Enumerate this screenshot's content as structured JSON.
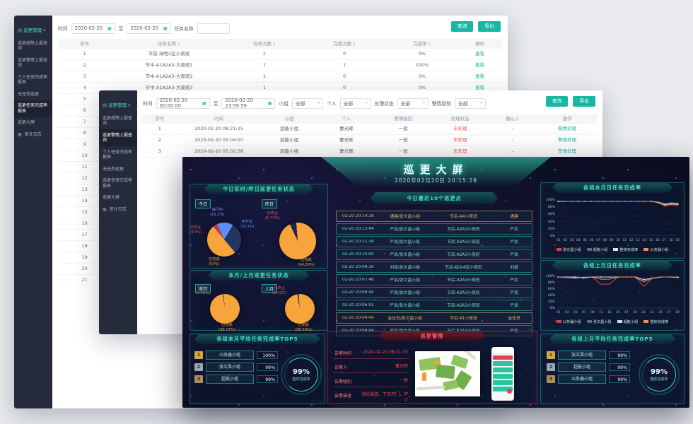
{
  "sidebar": {
    "root_label": "巡更管理",
    "root_caret": "▾",
    "root_icon": "▤",
    "audit_icon": "▦",
    "items": [
      "巡更故障上报查询",
      "巡更警情上报查询",
      "个人任务完成率报表",
      "无任务巡更",
      "巡更任务完成率报表",
      "巡更大屏",
      "审计日志"
    ]
  },
  "window1": {
    "active_item": "巡更任务完成率报表",
    "filters": {
      "time_label": "时间",
      "date_from": "2020-02-20",
      "to_label": "至",
      "date_to": "2020-02-20",
      "name_label": "任务名称",
      "name_value": "",
      "search": "查询",
      "export": "导出"
    },
    "table": {
      "headers": [
        "序号",
        "任务名称",
        "任务次数",
        "完成次数",
        "完成率",
        "操作"
      ],
      "sortable": [
        1,
        2,
        3,
        4
      ],
      "action_label": "查看",
      "rows": [
        [
          "1",
          "节前-绿地2区小夜班",
          "2",
          "0",
          "0%"
        ],
        [
          "2",
          "节中-A1A2A3-大夜班1",
          "1",
          "1",
          "100%"
        ],
        [
          "3",
          "节中-A1A2A3-大夜班2",
          "1",
          "0",
          "0%"
        ],
        [
          "4",
          "节中-A1A2A3-大夜班3",
          "1",
          "0",
          "0%"
        ],
        [
          "5",
          "描述测试",
          "1",
          "0",
          "0%"
        ]
      ],
      "more_row_numbers": [
        "6",
        "7",
        "8",
        "9",
        "10",
        "11",
        "12",
        "13",
        "14",
        "15",
        "16",
        "17",
        "18",
        "19",
        "20",
        "21"
      ]
    }
  },
  "window2": {
    "active_item": "巡更警情上报查询",
    "filters": {
      "time_label": "时间",
      "from": "2020-02-20 00:00:00",
      "to_label": "至",
      "to": "2020-02-20 23:59:59",
      "group_label": "小组",
      "person_label": "个人",
      "status_label": "处理状态",
      "level_label": "警情级别",
      "all": "全部",
      "search": "查询",
      "export": "导出"
    },
    "table": {
      "headers": [
        "序号",
        "时间",
        "小组",
        "个人",
        "警情级别",
        "处理状态",
        "确认人",
        "操作"
      ],
      "rows": [
        [
          "1",
          "2020-02-20 08:21:25",
          "超能小组",
          "曹光辉",
          "一般",
          "未处理",
          "-",
          "警情处理"
        ],
        [
          "2",
          "2020-02-20 05:04:50",
          "超能小组",
          "曹光辉",
          "一般",
          "未处理",
          "-",
          "警情处理"
        ],
        [
          "3",
          "2020-02-20 05:02:38",
          "超能小组",
          "曹光辉",
          "一般",
          "未处理",
          "-",
          "警情处理"
        ]
      ]
    }
  },
  "dashboard": {
    "title": "巡更大屏",
    "datetime": "2020年02月20日 20:15:29",
    "panel_titles": {
      "status_daily": "今日实时/昨日巡更任务状态",
      "status_monthly": "本月/上月巡更任务状态",
      "recent": "今日最近10个巡更点",
      "line_month": "各组本月日任务完成率",
      "line_lastmonth": "各组上月日任务完成率",
      "top5_month": "各组本月平均任务完成率TOP5",
      "alarm": "巡更警情",
      "top5_lastmonth": "各组上月平均任务完成率TOP5"
    },
    "badges": {
      "today": "今日",
      "yesterday": "昨日",
      "month": "本月",
      "last_month": "上月"
    },
    "recent_rows": [
      {
        "cells": [
          "02-20 20:14:38",
          "通建/张文昌小组",
          "节后-A4小夜班",
          "通建"
        ],
        "hl": true
      },
      {
        "cells": [
          "02-20 20:13:44",
          "严武/张文昌小组",
          "节后-A2A3小夜班",
          "严武"
        ],
        "hl": false
      },
      {
        "cells": [
          "02-20 20:11:34",
          "严武/张文昌小组",
          "节后-A2A3小夜班",
          "严武"
        ],
        "hl": false
      },
      {
        "cells": [
          "02-20 20:10:00",
          "严武/张文昌小组",
          "节后-A2A3小夜班",
          "严武"
        ],
        "hl": false
      },
      {
        "cells": [
          "02-20 20:08:10",
          "刘斌/张文昌小组",
          "节后-综合4区小夜班",
          "刘斌"
        ],
        "hl": false
      },
      {
        "cells": [
          "02-20 20:07:48",
          "严武/张文昌小组",
          "节后-A2A3小夜班",
          "严武"
        ],
        "hl": false
      },
      {
        "cells": [
          "02-20 20:06:45",
          "严武/张文昌小组",
          "节后-A2A3小夜班",
          "严武"
        ],
        "hl": false
      },
      {
        "cells": [
          "02-20 20:06:01",
          "严武/张文昌小组",
          "节后-A2A3小夜班",
          "严武"
        ],
        "hl": false
      },
      {
        "cells": [
          "02-20 20:04:49",
          "金佳良/张文昌小组",
          "节后-A1小夜班",
          "金佳良"
        ],
        "hl": true
      },
      {
        "cells": [
          "02-20 20:04:04",
          "严武/张文昌小组",
          "节后-A2A3小夜班",
          "严武"
        ],
        "hl": false
      }
    ],
    "top5_month": {
      "rows": [
        {
          "rank": "1",
          "name": "公务器小组",
          "pct": "100%"
        },
        {
          "rank": "2",
          "name": "张文昌小组",
          "pct": "99%"
        },
        {
          "rank": "3",
          "name": "超能小组",
          "pct": "99%"
        }
      ],
      "gauge_pct": "99%",
      "gauge_label": "整体完成率"
    },
    "top5_lastmonth": {
      "rows": [
        {
          "rank": "1",
          "name": "张文昌小组",
          "pct": "99%"
        },
        {
          "rank": "2",
          "name": "超能小组",
          "pct": "99%"
        },
        {
          "rank": "3",
          "name": "公务器小组",
          "pct": "99%"
        }
      ],
      "gauge_pct": "99%",
      "gauge_label": "整体完成率"
    },
    "alarm": {
      "fields": [
        {
          "label": "告警时间",
          "value": "2020-02-20 08:21:35"
        },
        {
          "label": "告警人",
          "value": "曹光辉"
        },
        {
          "label": "告警级别",
          "value": "一般"
        },
        {
          "label": "告警描述",
          "value": "消防通道，下去开门，坏了"
        }
      ]
    }
  },
  "chart_data": [
    {
      "id": "pie_today",
      "type": "pie",
      "title": "今日巡更任务状态",
      "start": 140,
      "slices": [
        {
          "name": "已完成",
          "pct": "50",
          "color": "#f6a43b",
          "label_color": "#f6a43b"
        },
        {
          "name": "已终止",
          "pct": "4.5",
          "color": "#c2374a",
          "label_color": "#e8566b"
        },
        {
          "name": "进行中",
          "pct": "15.2",
          "color": "#5b8ff9",
          "label_color": "#8f8af2"
        },
        {
          "name": "未开始",
          "pct": "30.3",
          "color": "#23355e",
          "label_color": "#5b8ff9"
        }
      ]
    },
    {
      "id": "pie_yesterday",
      "type": "pie",
      "title": "昨日巡更任务状态",
      "start": 335,
      "slices": [
        {
          "name": "已终止",
          "pct": "5.71",
          "color": "#1a2642",
          "label_color": "#e8566b"
        },
        {
          "name": "已完成",
          "pct": "94.29",
          "color": "#f6a43b",
          "label_color": "#f6a43b"
        }
      ]
    },
    {
      "id": "pie_month",
      "type": "pie",
      "title": "本月巡更任务状态",
      "start": 352,
      "slices": [
        {
          "name": "已终止",
          "pct": "0.73",
          "color": "#1a2642",
          "label_color": "#e8566b"
        },
        {
          "name": "已完成",
          "pct": "99.27",
          "color": "#f6a43b",
          "label_color": "#f6a43b"
        }
      ]
    },
    {
      "id": "pie_lastmonth",
      "type": "pie",
      "title": "上月巡更任务状态",
      "start": 350,
      "slices": [
        {
          "name": "已终止",
          "pct": "1.42",
          "color": "#1a2642",
          "label_color": "#e8566b"
        },
        {
          "name": "已完成",
          "pct": "98.58",
          "color": "#f6a43b",
          "label_color": "#f6a43b"
        }
      ]
    },
    {
      "id": "line_month",
      "type": "line",
      "title": "各组本月日任务完成率",
      "ylim": [
        0,
        100
      ],
      "yticks": [
        "100%",
        "80%",
        "60%",
        "40%",
        "20%",
        "0%"
      ],
      "x": [
        "01",
        "02",
        "03",
        "04",
        "05",
        "06",
        "07",
        "08",
        "09",
        "10",
        "11",
        "12",
        "13",
        "14",
        "15",
        "16",
        "17",
        "18",
        "19"
      ],
      "series": [
        {
          "name": "张文昌小组",
          "color": "#d4434f",
          "markers": false,
          "values": [
            100,
            100,
            100,
            100,
            100,
            100,
            100,
            100,
            100,
            100,
            100,
            100,
            100,
            100,
            100,
            97,
            86,
            90,
            88
          ]
        },
        {
          "name": "超能小组",
          "color": "#5a6a85",
          "markers": false,
          "values": [
            100,
            100,
            100,
            100,
            100,
            100,
            100,
            100,
            100,
            100,
            100,
            100,
            100,
            100,
            100,
            98,
            94,
            96,
            95
          ]
        },
        {
          "name": "整体完成率",
          "color": "#d9e8e6",
          "markers": true,
          "values": [
            100,
            100,
            100,
            100,
            100,
            100,
            100,
            100,
            100,
            100,
            100,
            100,
            100,
            100,
            100,
            97,
            91,
            94,
            92
          ]
        },
        {
          "name": "公务器小组",
          "color": "#f08c54",
          "markers": false,
          "values": [
            99,
            100,
            100,
            100,
            100,
            100,
            100,
            100,
            100,
            100,
            100,
            100,
            100,
            100,
            100,
            96,
            89,
            92,
            90
          ]
        }
      ]
    },
    {
      "id": "line_lastmonth",
      "type": "line",
      "title": "各组上月日任务完成率",
      "ylim": [
        0,
        100
      ],
      "yticks": [
        "100%",
        "80%",
        "60%",
        "40%",
        "20%",
        "0%"
      ],
      "x": [
        "01",
        "03",
        "05",
        "07",
        "09",
        "11",
        "13",
        "15",
        "17",
        "19",
        "21",
        "23",
        "25",
        "27",
        "29"
      ],
      "series": [
        {
          "name": "公务器小组",
          "color": "#d4434f",
          "markers": false,
          "values": [
            100,
            100,
            98,
            100,
            100,
            77,
            77,
            100,
            100,
            100,
            70,
            96,
            100,
            100,
            98
          ]
        },
        {
          "name": "张文昌小组",
          "color": "#5a6a85",
          "markers": false,
          "values": [
            100,
            98,
            95,
            100,
            100,
            100,
            100,
            100,
            100,
            100,
            88,
            97,
            100,
            100,
            100
          ]
        },
        {
          "name": "超能小组",
          "color": "#bfe3df",
          "markers": true,
          "values": [
            100,
            100,
            100,
            97,
            100,
            100,
            100,
            100,
            100,
            100,
            92,
            96,
            100,
            100,
            99
          ]
        },
        {
          "name": "整体完成率",
          "color": "#f08c54",
          "markers": false,
          "values": [
            100,
            99,
            98,
            99,
            100,
            93,
            93,
            100,
            100,
            100,
            84,
            96,
            100,
            100,
            99
          ]
        }
      ]
    }
  ]
}
